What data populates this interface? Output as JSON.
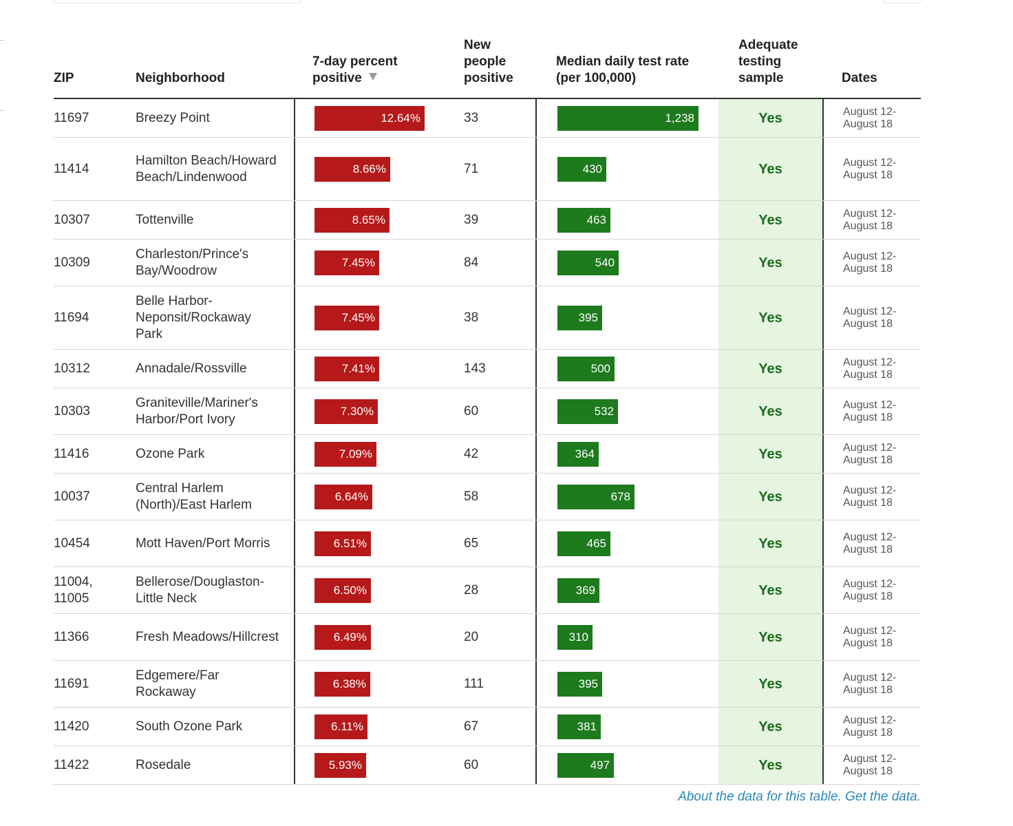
{
  "table": {
    "headers": {
      "zip": "ZIP",
      "neighborhood": "Neighborhood",
      "percent_positive": "7-day percent\npositive",
      "new_positive": "New\npeople\npositive",
      "test_rate": "Median daily test rate\n(per 100,000)",
      "adequate": "Adequate\ntesting\nsample",
      "dates": "Dates"
    },
    "sort": {
      "column": "7-day percent positive",
      "direction": "descending"
    }
  },
  "footer": {
    "about_label": "About the data for this table.",
    "get_data_label": "Get the data."
  },
  "colors": {
    "positive_bar": "#b5191a",
    "test_rate_bar": "#1d7a1d",
    "adequate_background": "#e5f5e0",
    "link": "#2a89b8"
  },
  "chart_data": {
    "type": "table",
    "columns": [
      "ZIP",
      "Neighborhood",
      "7-day percent positive",
      "New people positive",
      "Median daily test rate (per 100,000)",
      "Adequate testing sample",
      "Dates"
    ],
    "rows": [
      {
        "zip": "11697",
        "neighborhood": "Breezy Point",
        "percent_positive": 12.64,
        "percent_label": "12.64%",
        "new_positive": "33",
        "test_rate": 1238,
        "test_rate_label": "1,238",
        "adequate": "Yes",
        "dates": "August 12-\nAugust 18"
      },
      {
        "zip": "11414",
        "neighborhood": "Hamilton Beach/Howard Beach/Lindenwood",
        "percent_positive": 8.66,
        "percent_label": "8.66%",
        "new_positive": "71",
        "test_rate": 430,
        "test_rate_label": "430",
        "adequate": "Yes",
        "dates": "August 12-\nAugust 18"
      },
      {
        "zip": "10307",
        "neighborhood": "Tottenville",
        "percent_positive": 8.65,
        "percent_label": "8.65%",
        "new_positive": "39",
        "test_rate": 463,
        "test_rate_label": "463",
        "adequate": "Yes",
        "dates": "August 12-\nAugust 18"
      },
      {
        "zip": "10309",
        "neighborhood": "Charleston/Prince's Bay/Woodrow",
        "percent_positive": 7.45,
        "percent_label": "7.45%",
        "new_positive": "84",
        "test_rate": 540,
        "test_rate_label": "540",
        "adequate": "Yes",
        "dates": "August 12-\nAugust 18"
      },
      {
        "zip": "11694",
        "neighborhood": "Belle Harbor-Neponsit/Rockaway Park",
        "percent_positive": 7.45,
        "percent_label": "7.45%",
        "new_positive": "38",
        "test_rate": 395,
        "test_rate_label": "395",
        "adequate": "Yes",
        "dates": "August 12-\nAugust 18"
      },
      {
        "zip": "10312",
        "neighborhood": "Annadale/Rossville",
        "percent_positive": 7.41,
        "percent_label": "7.41%",
        "new_positive": "143",
        "test_rate": 500,
        "test_rate_label": "500",
        "adequate": "Yes",
        "dates": "August 12-\nAugust 18"
      },
      {
        "zip": "10303",
        "neighborhood": "Graniteville/Mariner's Harbor/Port Ivory",
        "percent_positive": 7.3,
        "percent_label": "7.30%",
        "new_positive": "60",
        "test_rate": 532,
        "test_rate_label": "532",
        "adequate": "Yes",
        "dates": "August 12-\nAugust 18"
      },
      {
        "zip": "11416",
        "neighborhood": "Ozone Park",
        "percent_positive": 7.09,
        "percent_label": "7.09%",
        "new_positive": "42",
        "test_rate": 364,
        "test_rate_label": "364",
        "adequate": "Yes",
        "dates": "August 12-\nAugust 18"
      },
      {
        "zip": "10037",
        "neighborhood": "Central Harlem (North)/East Harlem",
        "percent_positive": 6.64,
        "percent_label": "6.64%",
        "new_positive": "58",
        "test_rate": 678,
        "test_rate_label": "678",
        "adequate": "Yes",
        "dates": "August 12-\nAugust 18"
      },
      {
        "zip": "10454",
        "neighborhood": "Mott Haven/Port Morris",
        "percent_positive": 6.51,
        "percent_label": "6.51%",
        "new_positive": "65",
        "test_rate": 465,
        "test_rate_label": "465",
        "adequate": "Yes",
        "dates": "August 12-\nAugust 18"
      },
      {
        "zip": "11004,\n11005",
        "neighborhood": "Bellerose/Douglaston-Little Neck",
        "percent_positive": 6.5,
        "percent_label": "6.50%",
        "new_positive": "28",
        "test_rate": 369,
        "test_rate_label": "369",
        "adequate": "Yes",
        "dates": "August 12-\nAugust 18"
      },
      {
        "zip": "11366",
        "neighborhood": "Fresh Meadows/Hillcrest",
        "percent_positive": 6.49,
        "percent_label": "6.49%",
        "new_positive": "20",
        "test_rate": 310,
        "test_rate_label": "310",
        "adequate": "Yes",
        "dates": "August 12-\nAugust 18"
      },
      {
        "zip": "11691",
        "neighborhood": "Edgemere/Far Rockaway",
        "percent_positive": 6.38,
        "percent_label": "6.38%",
        "new_positive": "111",
        "test_rate": 395,
        "test_rate_label": "395",
        "adequate": "Yes",
        "dates": "August 12-\nAugust 18"
      },
      {
        "zip": "11420",
        "neighborhood": "South Ozone Park",
        "percent_positive": 6.11,
        "percent_label": "6.11%",
        "new_positive": "67",
        "test_rate": 381,
        "test_rate_label": "381",
        "adequate": "Yes",
        "dates": "August 12-\nAugust 18"
      },
      {
        "zip": "11422",
        "neighborhood": "Rosedale",
        "percent_positive": 5.93,
        "percent_label": "5.93%",
        "new_positive": "60",
        "test_rate": 497,
        "test_rate_label": "497",
        "adequate": "Yes",
        "dates": "August 12-\nAugust 18"
      }
    ]
  }
}
